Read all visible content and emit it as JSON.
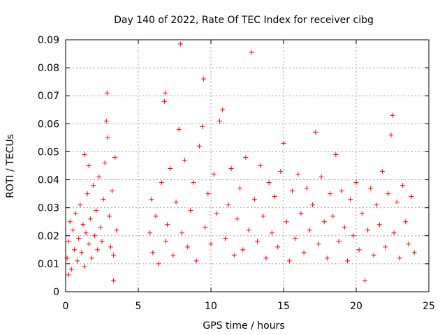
{
  "chart_data": {
    "type": "scatter",
    "title": "Day 140 of 2022, Rate Of TEC Index for receiver cibg",
    "xlabel": "GPS time / hours",
    "ylabel": "ROTI / TECUs",
    "xlim": [
      0,
      25
    ],
    "ylim": [
      0,
      0.09
    ],
    "xticks": [
      "0",
      "5",
      "10",
      "15",
      "20",
      "25"
    ],
    "yticks": [
      "0",
      "0.01",
      "0.02",
      "0.03",
      "0.04",
      "0.05",
      "0.06",
      "0.07",
      "0.08",
      "0.09"
    ],
    "grid": true,
    "marker": "+",
    "color": "#ff0000",
    "series": [
      {
        "name": "",
        "points": [
          [
            0.1,
            0.012
          ],
          [
            0.2,
            0.018
          ],
          [
            0.3,
            0.025
          ],
          [
            0.4,
            0.008
          ],
          [
            0.5,
            0.022
          ],
          [
            0.6,
            0.015
          ],
          [
            0.7,
            0.028
          ],
          [
            0.8,
            0.011
          ],
          [
            0.9,
            0.019
          ],
          [
            1.0,
            0.031
          ],
          [
            1.1,
            0.014
          ],
          [
            1.2,
            0.024
          ],
          [
            1.3,
            0.009
          ],
          [
            1.4,
            0.021
          ],
          [
            1.5,
            0.035
          ],
          [
            1.6,
            0.017
          ],
          [
            1.7,
            0.026
          ],
          [
            1.8,
            0.012
          ],
          [
            1.9,
            0.038
          ],
          [
            2.0,
            0.02
          ],
          [
            2.1,
            0.029
          ],
          [
            2.2,
            0.015
          ],
          [
            2.3,
            0.041
          ],
          [
            2.4,
            0.023
          ],
          [
            2.5,
            0.018
          ],
          [
            2.6,
            0.033
          ],
          [
            2.7,
            0.046
          ],
          [
            2.8,
            0.061
          ],
          [
            2.85,
            0.071
          ],
          [
            2.9,
            0.055
          ],
          [
            3.0,
            0.027
          ],
          [
            3.1,
            0.016
          ],
          [
            3.2,
            0.036
          ],
          [
            3.3,
            0.004
          ],
          [
            3.4,
            0.048
          ],
          [
            3.5,
            0.022
          ],
          [
            1.6,
            0.045
          ],
          [
            1.3,
            0.049
          ],
          [
            0.2,
            0.006
          ],
          [
            3.3,
            0.013
          ],
          [
            5.8,
            0.021
          ],
          [
            5.9,
            0.033
          ],
          [
            6.0,
            0.014
          ],
          [
            6.2,
            0.027
          ],
          [
            6.4,
            0.01
          ],
          [
            6.6,
            0.039
          ],
          [
            6.8,
            0.068
          ],
          [
            6.85,
            0.071
          ],
          [
            6.9,
            0.018
          ],
          [
            7.0,
            0.024
          ],
          [
            7.2,
            0.044
          ],
          [
            7.4,
            0.013
          ],
          [
            7.6,
            0.032
          ],
          [
            7.8,
            0.058
          ],
          [
            7.9,
            0.0885
          ],
          [
            8.0,
            0.021
          ],
          [
            8.2,
            0.047
          ],
          [
            8.4,
            0.016
          ],
          [
            8.6,
            0.029
          ],
          [
            8.8,
            0.039
          ],
          [
            9.0,
            0.011
          ],
          [
            9.2,
            0.052
          ],
          [
            9.4,
            0.059
          ],
          [
            9.5,
            0.076
          ],
          [
            9.6,
            0.023
          ],
          [
            9.8,
            0.035
          ],
          [
            10.0,
            0.017
          ],
          [
            10.2,
            0.042
          ],
          [
            10.4,
            0.028
          ],
          [
            10.6,
            0.061
          ],
          [
            10.8,
            0.065
          ],
          [
            11.0,
            0.019
          ],
          [
            11.2,
            0.031
          ],
          [
            11.4,
            0.044
          ],
          [
            11.6,
            0.013
          ],
          [
            11.8,
            0.026
          ],
          [
            12.0,
            0.037
          ],
          [
            12.2,
            0.015
          ],
          [
            12.4,
            0.048
          ],
          [
            12.6,
            0.022
          ],
          [
            12.8,
            0.0855
          ],
          [
            13.0,
            0.033
          ],
          [
            13.2,
            0.018
          ],
          [
            13.4,
            0.045
          ],
          [
            13.6,
            0.027
          ],
          [
            13.8,
            0.012
          ],
          [
            14.0,
            0.039
          ],
          [
            14.2,
            0.021
          ],
          [
            14.4,
            0.034
          ],
          [
            14.6,
            0.016
          ],
          [
            14.8,
            0.043
          ],
          [
            15.0,
            0.053
          ],
          [
            15.2,
            0.025
          ],
          [
            15.4,
            0.011
          ],
          [
            15.6,
            0.036
          ],
          [
            15.8,
            0.019
          ],
          [
            16.0,
            0.042
          ],
          [
            16.2,
            0.028
          ],
          [
            16.4,
            0.014
          ],
          [
            16.6,
            0.037
          ],
          [
            16.8,
            0.022
          ],
          [
            17.0,
            0.031
          ],
          [
            17.2,
            0.057
          ],
          [
            17.4,
            0.017
          ],
          [
            17.6,
            0.041
          ],
          [
            17.8,
            0.025
          ],
          [
            18.0,
            0.012
          ],
          [
            18.2,
            0.035
          ],
          [
            18.4,
            0.027
          ],
          [
            18.6,
            0.049
          ],
          [
            18.8,
            0.018
          ],
          [
            19.0,
            0.036
          ],
          [
            19.2,
            0.023
          ],
          [
            19.4,
            0.011
          ],
          [
            19.6,
            0.033
          ],
          [
            19.8,
            0.02
          ],
          [
            20.0,
            0.039
          ],
          [
            20.2,
            0.015
          ],
          [
            20.4,
            0.028
          ],
          [
            20.6,
            0.004
          ],
          [
            20.8,
            0.022
          ],
          [
            21.0,
            0.037
          ],
          [
            21.2,
            0.013
          ],
          [
            21.4,
            0.031
          ],
          [
            21.6,
            0.024
          ],
          [
            21.8,
            0.043
          ],
          [
            22.0,
            0.016
          ],
          [
            22.2,
            0.035
          ],
          [
            22.4,
            0.056
          ],
          [
            22.5,
            0.063
          ],
          [
            22.6,
            0.021
          ],
          [
            22.8,
            0.032
          ],
          [
            23.0,
            0.012
          ],
          [
            23.2,
            0.038
          ],
          [
            23.4,
            0.025
          ],
          [
            23.6,
            0.017
          ],
          [
            23.8,
            0.034
          ],
          [
            24.0,
            0.014
          ]
        ]
      }
    ]
  }
}
